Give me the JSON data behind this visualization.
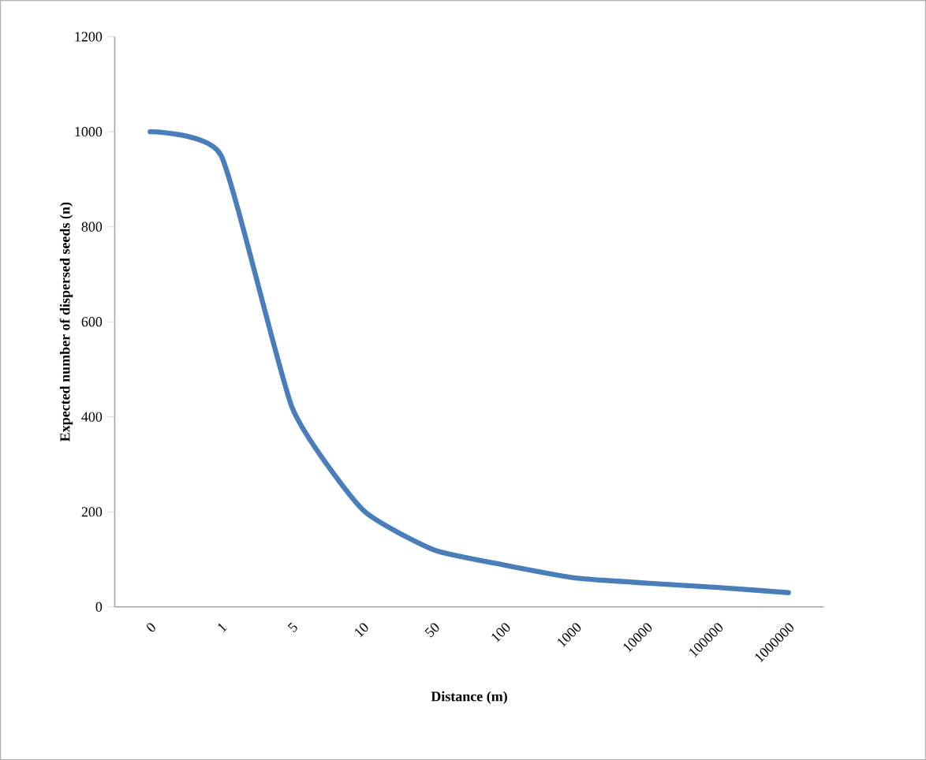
{
  "chart_data": {
    "type": "line",
    "xlabel": "Distance (m)",
    "ylabel": "Expected number of dispersed seeds (n)",
    "categories": [
      "0",
      "1",
      "5",
      "10",
      "50",
      "100",
      "1000",
      "10000",
      "100000",
      "1000000"
    ],
    "series": [
      {
        "color": "#4a7ebb",
        "values": [
          1000,
          950,
          420,
          204,
          120,
          88,
          61,
          50,
          41,
          30
        ]
      }
    ],
    "ylim": [
      0,
      1200
    ],
    "yticks": [
      0,
      200,
      400,
      600,
      800,
      1000,
      1200
    ],
    "marker": "none",
    "line_style": "solid"
  }
}
